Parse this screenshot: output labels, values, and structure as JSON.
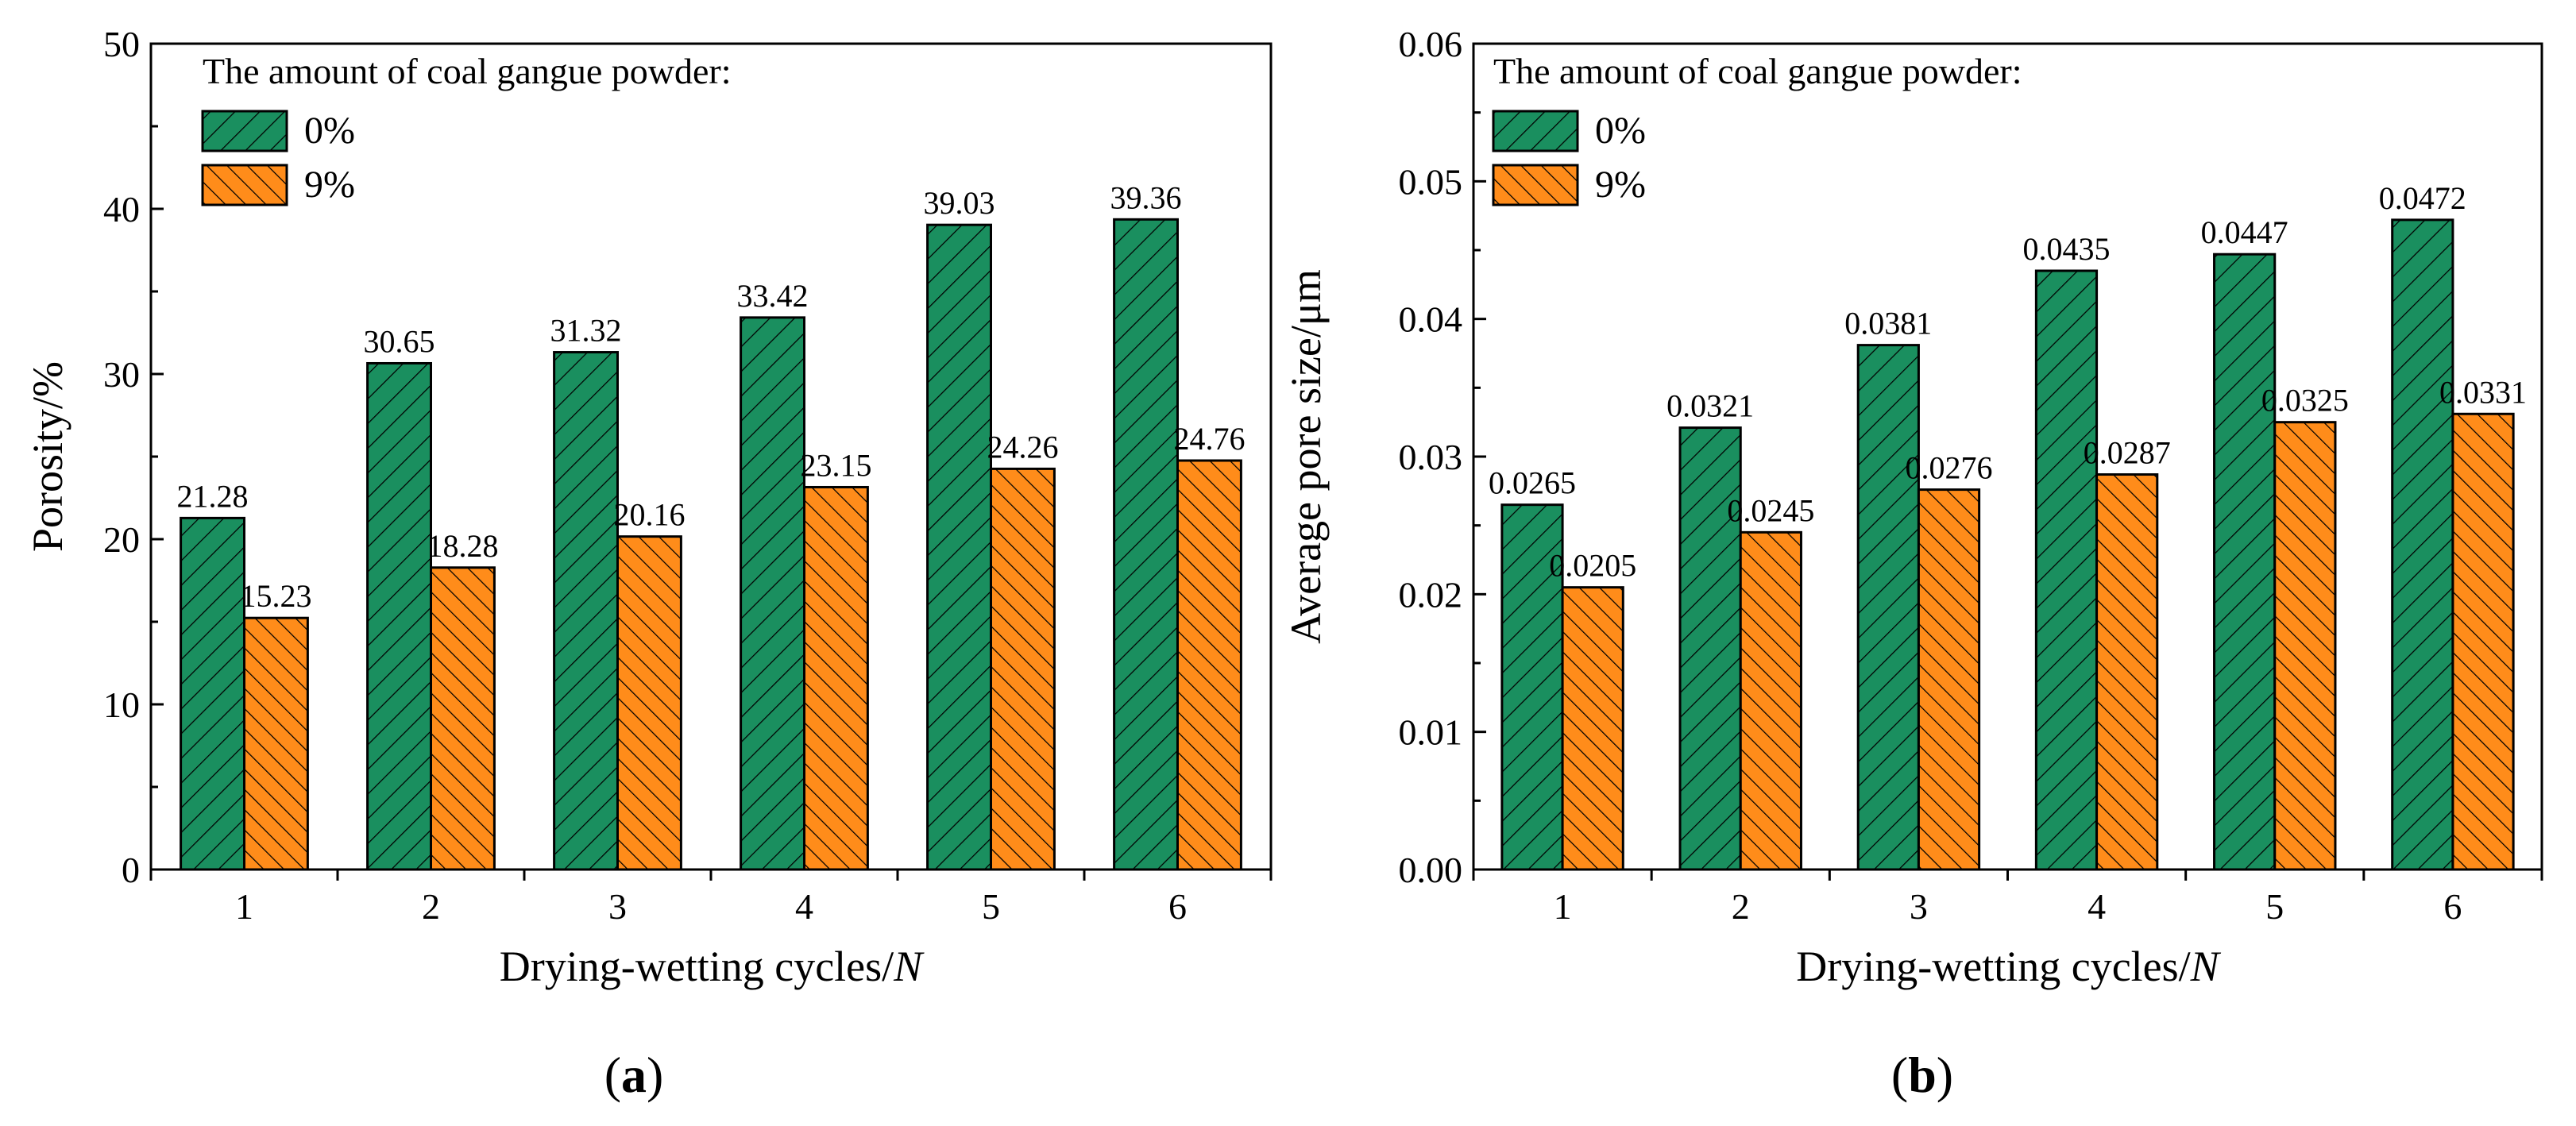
{
  "colors": {
    "series0": "#1a8f5f",
    "series1": "#ff8c1a"
  },
  "chart_data": [
    {
      "type": "bar",
      "panel_label": "a",
      "categories": [
        "1",
        "2",
        "3",
        "4",
        "5",
        "6"
      ],
      "xlabel": "Drying-wetting cycles/",
      "xlabel_italic": "N",
      "ylabel": "Porosity/%",
      "ylim": [
        0,
        50
      ],
      "yticks": [
        "0",
        "10",
        "20",
        "30",
        "40",
        "50"
      ],
      "legend_title": "The amount of coal gangue powder:",
      "legend_position": "top-left",
      "series": [
        {
          "name": "0%",
          "values": [
            21.28,
            30.65,
            31.32,
            33.42,
            39.03,
            39.36
          ],
          "labels": [
            "21.28",
            "30.65",
            "31.32",
            "33.42",
            "39.03",
            "39.36"
          ]
        },
        {
          "name": "9%",
          "values": [
            15.23,
            18.28,
            20.16,
            23.15,
            24.26,
            24.76
          ],
          "labels": [
            "15.23",
            "18.28",
            "20.16",
            "23.15",
            "24.26",
            "24.76"
          ]
        }
      ]
    },
    {
      "type": "bar",
      "panel_label": "b",
      "categories": [
        "1",
        "2",
        "3",
        "4",
        "5",
        "6"
      ],
      "xlabel": "Drying-wetting cycles/",
      "xlabel_italic": "N",
      "ylabel": "Average pore size/μm",
      "ylim": [
        0,
        0.06
      ],
      "yticks": [
        "0.00",
        "0.01",
        "0.02",
        "0.03",
        "0.04",
        "0.05",
        "0.06"
      ],
      "legend_title": "The amount of coal gangue powder:",
      "legend_position": "top-left",
      "series": [
        {
          "name": "0%",
          "values": [
            0.0265,
            0.0321,
            0.0381,
            0.0435,
            0.0447,
            0.0472
          ],
          "labels": [
            "0.0265",
            "0.0321",
            "0.0381",
            "0.0435",
            "0.0447",
            "0.0472"
          ]
        },
        {
          "name": "9%",
          "values": [
            0.0205,
            0.0245,
            0.0276,
            0.0287,
            0.0325,
            0.0331
          ],
          "labels": [
            "0.0205",
            "0.0245",
            "0.0276",
            "0.0287",
            "0.0325",
            "0.0331"
          ]
        }
      ]
    }
  ]
}
